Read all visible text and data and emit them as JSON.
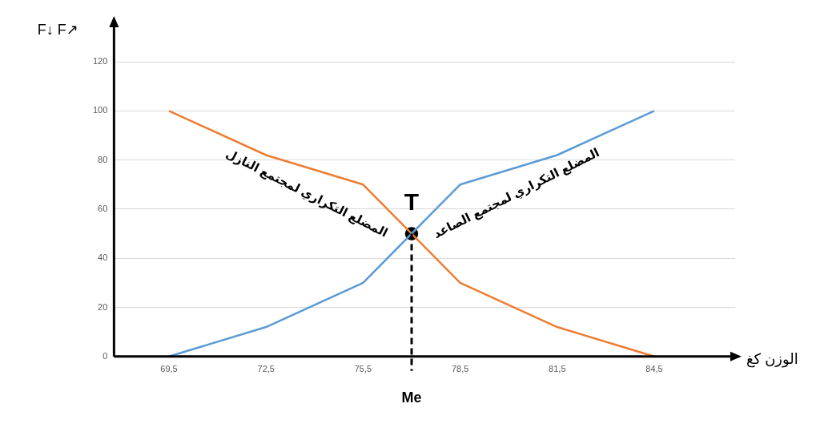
{
  "chart_data": {
    "type": "line",
    "ylabel": "F↓ F↗",
    "xlabel": "الوزن كغ",
    "x": [
      69.5,
      72.5,
      75.5,
      78.5,
      81.5,
      84.5
    ],
    "xlim": [
      67.8,
      87
    ],
    "xticks": [
      {
        "value": 69.5,
        "label": "69,5"
      },
      {
        "value": 72.5,
        "label": "72,5"
      },
      {
        "value": 75.5,
        "label": "75,5"
      },
      {
        "value": 78.5,
        "label": "78,5"
      },
      {
        "value": 81.5,
        "label": "81,5"
      },
      {
        "value": 84.5,
        "label": "84,5"
      }
    ],
    "ylim": [
      0,
      136
    ],
    "yticks": [
      0,
      20,
      40,
      60,
      80,
      100,
      120
    ],
    "grid": "y",
    "marker": "none",
    "line_style": "solid",
    "series": [
      {
        "name": "المضلع التكراري لمجتمع الصاعد",
        "color": "#5b9bd5",
        "values": [
          0,
          12,
          30,
          70,
          82,
          100
        ]
      },
      {
        "name": "المضلع التكراري لمجتمع النازل",
        "color": "#ed7d31",
        "values": [
          100,
          82,
          70,
          30,
          12,
          0
        ]
      },
      {
        "type": "scatter",
        "color": "#000000",
        "x": [
          77
        ],
        "values": [
          50
        ],
        "marker": "circle"
      }
    ],
    "ref_lines": [
      {
        "axis": "x",
        "value": 77,
        "label": "Me",
        "color": "#000000",
        "line_style": "dashed"
      }
    ],
    "annotations": [
      {
        "text": "T",
        "x": 77,
        "y": 50
      }
    ]
  }
}
